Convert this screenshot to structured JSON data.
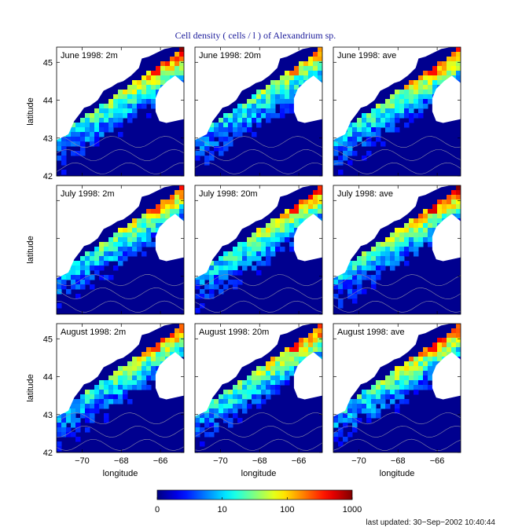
{
  "figure": {
    "title": "Cell density ( cells / l ) of Alexandrium sp.",
    "last_updated": "last updated: 30−Sep−2002 10:40:44"
  },
  "chart_data": {
    "type": "heatmap",
    "title": "Cell density ( cells / l ) of Alexandrium sp.",
    "xlabel": "longitude",
    "ylabel": "latitude",
    "xlim": [
      -71.3,
      -64.8
    ],
    "ylim": [
      42,
      45.4
    ],
    "x_ticks": [
      -70,
      -68,
      -66
    ],
    "x_tick_labels": [
      "−70",
      "−68",
      "−66"
    ],
    "y_ticks": [
      42,
      43,
      44,
      45
    ],
    "y_tick_labels": [
      "42",
      "43",
      "44",
      "45"
    ],
    "colorbar": {
      "scale": "log",
      "ticks": [
        0,
        10,
        100,
        1000
      ],
      "tick_labels": [
        "0",
        "10",
        "100",
        "1000"
      ],
      "colormap": "jet"
    },
    "panels": [
      {
        "label": "June 1998: 2m",
        "row": 0,
        "col": 0,
        "relative_intensity": 0.85
      },
      {
        "label": "June 1998: 20m",
        "row": 0,
        "col": 1,
        "relative_intensity": 0.75
      },
      {
        "label": "June 1998: ave",
        "row": 0,
        "col": 2,
        "relative_intensity": 0.85
      },
      {
        "label": "July 1998: 2m",
        "row": 1,
        "col": 0,
        "relative_intensity": 0.8
      },
      {
        "label": "July 1998: 20m",
        "row": 1,
        "col": 1,
        "relative_intensity": 0.85
      },
      {
        "label": "July 1998: ave",
        "row": 1,
        "col": 2,
        "relative_intensity": 0.9
      },
      {
        "label": "August 1998: 2m",
        "row": 2,
        "col": 0,
        "relative_intensity": 0.8
      },
      {
        "label": "August 1998: 20m",
        "row": 2,
        "col": 1,
        "relative_intensity": 0.85
      },
      {
        "label": "August 1998: ave",
        "row": 2,
        "col": 2,
        "relative_intensity": 0.85
      }
    ]
  }
}
